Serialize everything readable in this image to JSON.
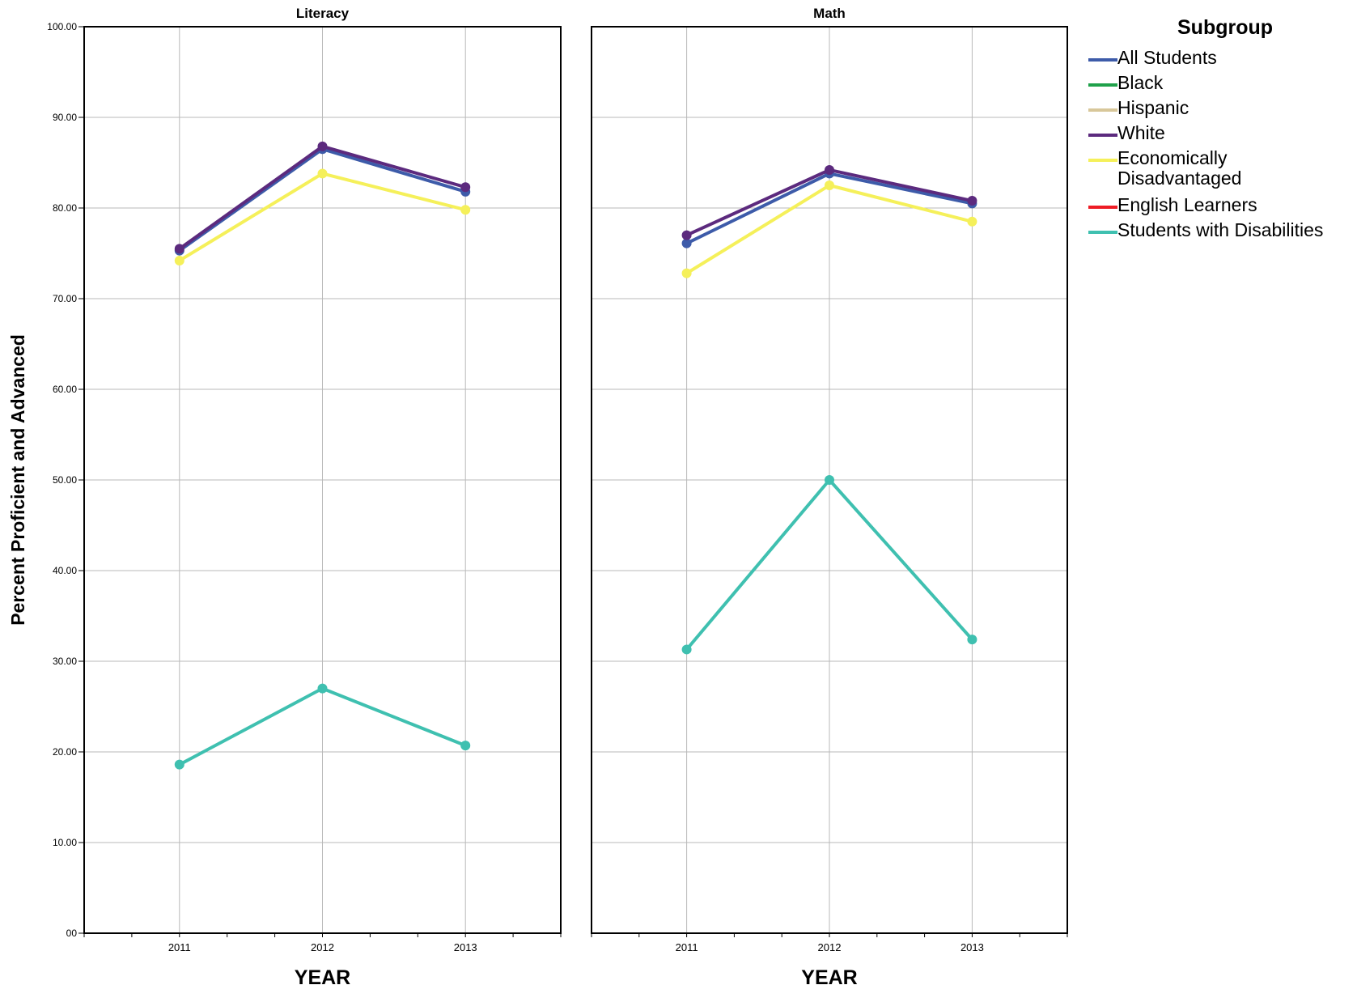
{
  "chart_data": [
    {
      "type": "line",
      "title": "Literacy",
      "xlabel": "YEAR",
      "ylabel": "Percent Proficient and Advanced",
      "ylim": [
        0,
        100
      ],
      "yticks": [
        "00",
        "10.00",
        "20.00",
        "30.00",
        "40.00",
        "50.00",
        "60.00",
        "70.00",
        "80.00",
        "90.00",
        "100.00"
      ],
      "categories": [
        "2011",
        "2012",
        "2013"
      ],
      "grid": true,
      "series": [
        {
          "name": "All Students",
          "color": "#3d5ba9",
          "values": [
            75.3,
            86.5,
            81.8
          ]
        },
        {
          "name": "Economically Disadvantaged",
          "color": "#f5f05a",
          "values": [
            74.2,
            83.8,
            79.8
          ]
        },
        {
          "name": "White",
          "color": "#5c2a7e",
          "values": [
            75.5,
            86.8,
            82.3
          ]
        },
        {
          "name": "Students with Disabilities",
          "color": "#3fc0b0",
          "values": [
            18.6,
            27.0,
            20.7
          ]
        }
      ]
    },
    {
      "type": "line",
      "title": "Math",
      "xlabel": "YEAR",
      "ylabel": "",
      "ylim": [
        0,
        100
      ],
      "categories": [
        "2011",
        "2012",
        "2013"
      ],
      "grid": true,
      "series": [
        {
          "name": "All Students",
          "color": "#3d5ba9",
          "values": [
            76.1,
            83.8,
            80.5
          ]
        },
        {
          "name": "Economically Disadvantaged",
          "color": "#f5f05a",
          "values": [
            72.8,
            82.5,
            78.5
          ]
        },
        {
          "name": "White",
          "color": "#5c2a7e",
          "values": [
            77.0,
            84.2,
            80.8
          ]
        },
        {
          "name": "Students with Disabilities",
          "color": "#3fc0b0",
          "values": [
            31.3,
            50.0,
            32.4
          ]
        }
      ]
    }
  ],
  "legend": {
    "title": "Subgroup",
    "placement": "top-right",
    "items": [
      {
        "label": "All Students",
        "color": "#3d5ba9"
      },
      {
        "label": "Black",
        "color": "#1fa14a"
      },
      {
        "label": "Hispanic",
        "color": "#d8c79a"
      },
      {
        "label": "White",
        "color": "#5c2a7e"
      },
      {
        "label": "Economically Disadvantaged",
        "color": "#f5f05a"
      },
      {
        "label": "English Learners",
        "color": "#ee1c25"
      },
      {
        "label": "Students with Disabilities",
        "color": "#3fc0b0"
      }
    ]
  }
}
